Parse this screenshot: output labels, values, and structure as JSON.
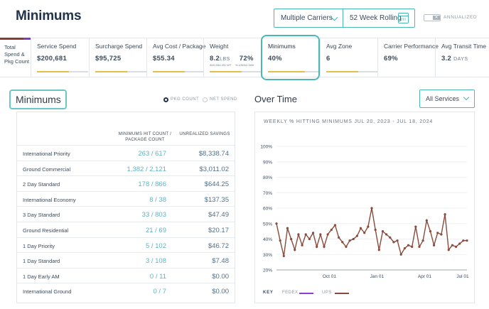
{
  "header": {
    "title": "Minimums",
    "carrier_select": "Multiple Carriers",
    "period_select": "52 Week Rolling",
    "toggle_label": "ANNUALIZED",
    "toggle_mark": "✕"
  },
  "kpis": {
    "side_label": "Total Spend & Pkg Count",
    "items": [
      {
        "label": "Service Spend",
        "value": "$200,681",
        "bar": 0.62
      },
      {
        "label": "Surcharge Spend",
        "value": "$95,725",
        "bar": 0.62
      },
      {
        "label": "Avg Cost / Package",
        "value": "$55.34",
        "bar": 0.62
      },
      {
        "label": "Weight",
        "value": "8.2",
        "unit": "LBS",
        "value2": "72%",
        "sub1": "AVG BILLED WT",
        "sub2": "% USING DIM",
        "bar": 0.62
      },
      {
        "label": "Minimums",
        "value": "40%",
        "bar": 0.72
      },
      {
        "label": "Avg Zone",
        "value": "6",
        "bar": 0.62
      },
      {
        "label": "Carrier Performance",
        "value": "69%",
        "bar": 0
      },
      {
        "label": "Avg Transit Time",
        "value": "3.2",
        "unit": "DAYS",
        "bar": 0
      }
    ]
  },
  "section": {
    "title": "Minimums",
    "radio_pkg": "PKG COUNT",
    "radio_net": "NET SPEND"
  },
  "table": {
    "col_count": "MINIMUMS HIT COUNT / PACKAGE COUNT",
    "col_savings": "UNREALIZED SAVINGS",
    "rows": [
      {
        "name": "International Priority",
        "count": "263 / 617",
        "savings": "$8,338.74"
      },
      {
        "name": "Ground Commercial",
        "count": "1,382 / 2,121",
        "savings": "$3,011.02"
      },
      {
        "name": "2 Day Standard",
        "count": "178 / 866",
        "savings": "$644.25"
      },
      {
        "name": "International Economy",
        "count": "8 / 38",
        "savings": "$137.35"
      },
      {
        "name": "3 Day Standard",
        "count": "33 / 803",
        "savings": "$47.49"
      },
      {
        "name": "Ground Residential",
        "count": "21 / 69",
        "savings": "$20.17"
      },
      {
        "name": "1 Day Priority",
        "count": "5 / 102",
        "savings": "$46.72"
      },
      {
        "name": "1 Day Standard",
        "count": "3 / 108",
        "savings": "$7.48"
      },
      {
        "name": "1 Day Early AM",
        "count": "0 / 11",
        "savings": "$0.00"
      },
      {
        "name": "International Ground",
        "count": "0 / 7",
        "savings": "$0.00"
      }
    ]
  },
  "over_time": {
    "title": "Over Time",
    "service_select": "All Services",
    "key_label": "KEY"
  },
  "chart_data": {
    "type": "line",
    "title": "WEEKLY % HITTING MINIMUMS JUL 20, 2023 - JUL 18, 2024",
    "xlabel": "",
    "ylabel": "",
    "ylim": [
      20,
      100
    ],
    "yticks": [
      "20%",
      "30%",
      "40%",
      "50%",
      "60%",
      "70%",
      "80%",
      "90%",
      "100%"
    ],
    "xticks": [
      "Oct 01",
      "Jan 01",
      "Apr 01",
      "Jul 01"
    ],
    "grid": true,
    "series": [
      {
        "name": "FEDEX",
        "color": "#8b3fd6",
        "values": []
      },
      {
        "name": "UPS",
        "color": "#8a4a3c",
        "values": [
          50,
          39,
          29,
          47,
          40,
          33,
          43,
          36,
          43,
          40,
          44,
          35,
          43,
          35,
          43,
          46,
          49,
          41,
          38,
          35,
          39,
          40,
          42,
          47,
          44,
          48,
          60,
          46,
          33,
          45,
          43,
          41,
          38,
          39,
          30,
          34,
          36,
          35,
          48,
          35,
          39,
          52,
          45,
          36,
          44,
          43,
          56,
          33,
          36,
          35,
          37,
          39,
          39
        ]
      }
    ]
  },
  "colors": {
    "accent": "#4cb8b6",
    "value_count": "#5fb3c3",
    "value_savings": "#4f6f8a",
    "kpi_bar": "#e2c04a",
    "ups": "#8a4a3c",
    "fedex": "#8b3fd6"
  }
}
